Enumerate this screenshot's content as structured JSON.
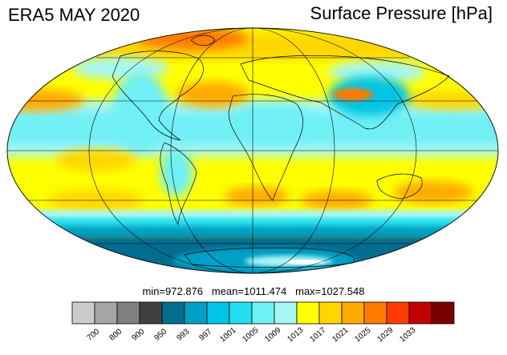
{
  "header": {
    "title": "ERA5 MAY 2020",
    "variable": "Surface Pressure [hPa]"
  },
  "stats": {
    "min_label": "min=",
    "min": "972.876",
    "mean_label": "mean=",
    "mean": "1011.474",
    "max_label": "max=",
    "max": "1027.548"
  },
  "colorbar": {
    "levels": [
      "700",
      "800",
      "900",
      "950",
      "993",
      "997",
      "1001",
      "1005",
      "1009",
      "1013",
      "1017",
      "1021",
      "1025",
      "1029",
      "1033"
    ],
    "colors": [
      "#cccccc",
      "#a6a6a6",
      "#808080",
      "#404040",
      "#006d8f",
      "#00a0c6",
      "#00c5e8",
      "#23dff2",
      "#6ff0f5",
      "#a6f6f5",
      "#ffff00",
      "#ffd700",
      "#ffaa00",
      "#ff7a00",
      "#ff3c00",
      "#c00000",
      "#7a0000"
    ]
  },
  "chart_data": {
    "type": "heatmap",
    "projection": "mollweide",
    "field": "surface pressure",
    "min": 972.876,
    "mean": 1011.474,
    "max": 1027.548
  }
}
